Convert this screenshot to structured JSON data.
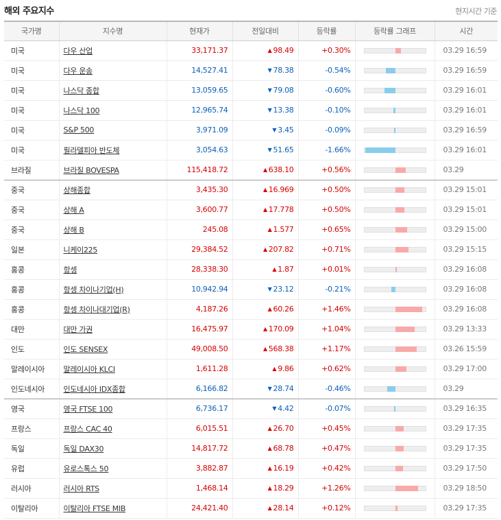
{
  "title": "해외 주요지수",
  "note": "현지시간 기준",
  "columns": [
    "국가명",
    "지수명",
    "현재가",
    "전일대비",
    "등락률",
    "등락률 그래프",
    "시간"
  ],
  "colors": {
    "up": "#d60000",
    "down": "#0b5fb9",
    "bar_up": "#f8a9a9",
    "bar_down": "#89ccec"
  },
  "rows": [
    {
      "country": "미국",
      "index": "다우 산업",
      "price": "33,171.37",
      "dir": "up",
      "change": "98.49",
      "rate": "+0.30%",
      "rate_value": 0.3,
      "time": "03.29 16:59"
    },
    {
      "country": "미국",
      "index": "다우 운송",
      "price": "14,527.41",
      "dir": "down",
      "change": "78.38",
      "rate": "-0.54%",
      "rate_value": -0.54,
      "time": "03.29 16:59"
    },
    {
      "country": "미국",
      "index": "나스닥 종합",
      "price": "13,059.65",
      "dir": "down",
      "change": "79.08",
      "rate": "-0.60%",
      "rate_value": -0.6,
      "time": "03.29 16:01"
    },
    {
      "country": "미국",
      "index": "나스닥 100",
      "price": "12,965.74",
      "dir": "down",
      "change": "13.38",
      "rate": "-0.10%",
      "rate_value": -0.1,
      "time": "03.29 16:01"
    },
    {
      "country": "미국",
      "index": "S&P 500",
      "price": "3,971.09",
      "dir": "down",
      "change": "3.45",
      "rate": "-0.09%",
      "rate_value": -0.09,
      "time": "03.29 16:59"
    },
    {
      "country": "미국",
      "index": "필라델피아 반도체",
      "price": "3,054.63",
      "dir": "down",
      "change": "51.65",
      "rate": "-1.66%",
      "rate_value": -1.66,
      "time": "03.29 16:01"
    },
    {
      "country": "브라질",
      "index": "브라질 BOVESPA",
      "price": "115,418.72",
      "dir": "up",
      "change": "638.10",
      "rate": "+0.56%",
      "rate_value": 0.56,
      "time": "03.29",
      "group_end": true
    },
    {
      "country": "중국",
      "index": "상해종합",
      "price": "3,435.30",
      "dir": "up",
      "change": "16.969",
      "rate": "+0.50%",
      "rate_value": 0.5,
      "time": "03.29 15:01"
    },
    {
      "country": "중국",
      "index": "상해 A",
      "price": "3,600.77",
      "dir": "up",
      "change": "17.778",
      "rate": "+0.50%",
      "rate_value": 0.5,
      "time": "03.29 15:01"
    },
    {
      "country": "중국",
      "index": "상해 B",
      "price": "245.08",
      "dir": "up",
      "change": "1.577",
      "rate": "+0.65%",
      "rate_value": 0.65,
      "time": "03.29 15:00"
    },
    {
      "country": "일본",
      "index": "니케이225",
      "price": "29,384.52",
      "dir": "up",
      "change": "207.82",
      "rate": "+0.71%",
      "rate_value": 0.71,
      "time": "03.29 15:15"
    },
    {
      "country": "홍콩",
      "index": "항셍",
      "price": "28,338.30",
      "dir": "up",
      "change": "1.87",
      "rate": "+0.01%",
      "rate_value": 0.01,
      "time": "03.29 16:08"
    },
    {
      "country": "홍콩",
      "index": "항셍 차이나기업(H)",
      "price": "10,942.94",
      "dir": "down",
      "change": "23.12",
      "rate": "-0.21%",
      "rate_value": -0.21,
      "time": "03.29 16:08"
    },
    {
      "country": "홍콩",
      "index": "항셍 차이나대기업(R)",
      "price": "4,187.26",
      "dir": "up",
      "change": "60.26",
      "rate": "+1.46%",
      "rate_value": 1.46,
      "time": "03.29 16:08"
    },
    {
      "country": "대만",
      "index": "대만 가권",
      "price": "16,475.97",
      "dir": "up",
      "change": "170.09",
      "rate": "+1.04%",
      "rate_value": 1.04,
      "time": "03.29 13:33"
    },
    {
      "country": "인도",
      "index": "인도 SENSEX",
      "price": "49,008.50",
      "dir": "up",
      "change": "568.38",
      "rate": "+1.17%",
      "rate_value": 1.17,
      "time": "03.26 15:59"
    },
    {
      "country": "말레이시아",
      "index": "말레이시아 KLCI",
      "price": "1,611.28",
      "dir": "up",
      "change": "9.86",
      "rate": "+0.62%",
      "rate_value": 0.62,
      "time": "03.29 17:00"
    },
    {
      "country": "인도네시아",
      "index": "인도네시아 IDX종합",
      "price": "6,166.82",
      "dir": "down",
      "change": "28.74",
      "rate": "-0.46%",
      "rate_value": -0.46,
      "time": "03.29",
      "group_end": true
    },
    {
      "country": "영국",
      "index": "영국 FTSE 100",
      "price": "6,736.17",
      "dir": "down",
      "change": "4.42",
      "rate": "-0.07%",
      "rate_value": -0.07,
      "time": "03.29 16:35"
    },
    {
      "country": "프랑스",
      "index": "프랑스 CAC 40",
      "price": "6,015.51",
      "dir": "up",
      "change": "26.70",
      "rate": "+0.45%",
      "rate_value": 0.45,
      "time": "03.29 17:35"
    },
    {
      "country": "독일",
      "index": "독일 DAX30",
      "price": "14,817.72",
      "dir": "up",
      "change": "68.78",
      "rate": "+0.47%",
      "rate_value": 0.47,
      "time": "03.29 17:35"
    },
    {
      "country": "유럽",
      "index": "유로스톡스 50",
      "price": "3,882.87",
      "dir": "up",
      "change": "16.19",
      "rate": "+0.42%",
      "rate_value": 0.42,
      "time": "03.29 17:50"
    },
    {
      "country": "러시아",
      "index": "러시아 RTS",
      "price": "1,468.14",
      "dir": "up",
      "change": "18.29",
      "rate": "+1.26%",
      "rate_value": 1.26,
      "time": "03.29 18:50"
    },
    {
      "country": "이탈리아",
      "index": "이탈리아 FTSE MIB",
      "price": "24,421.40",
      "dir": "up",
      "change": "28.14",
      "rate": "+0.12%",
      "rate_value": 0.12,
      "time": "03.29 17:35"
    }
  ]
}
